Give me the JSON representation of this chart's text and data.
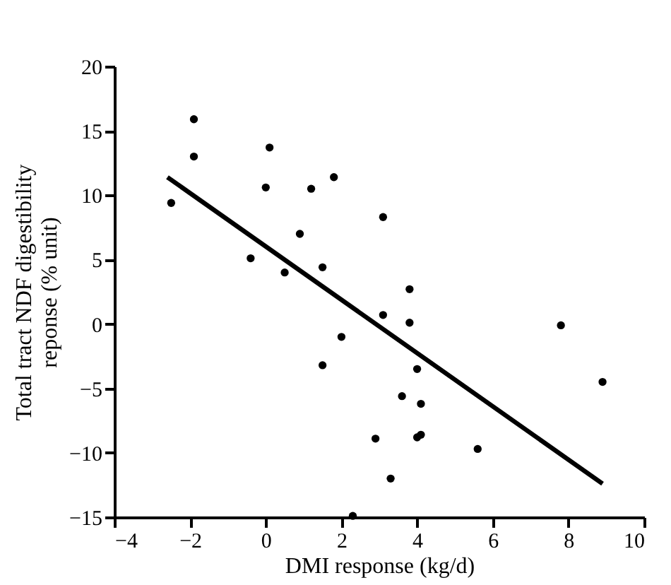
{
  "chart_data": {
    "type": "scatter",
    "xlabel": "DMI response (kg/d)",
    "ylabel": "Total tract NDF digestibility\nreponse (% unit)",
    "xlim": [
      -4,
      10
    ],
    "ylim": [
      -15,
      20
    ],
    "xticks": [
      -4,
      -2,
      0,
      2,
      4,
      6,
      8,
      10
    ],
    "yticks": [
      -15,
      -10,
      -5,
      0,
      5,
      10,
      15,
      20
    ],
    "grid": false,
    "marker": "circle",
    "series": [
      {
        "color": "#000000",
        "x": [
          -2.5,
          -1.9,
          -1.9,
          0.1,
          0,
          1.2,
          1.8,
          0.9,
          -0.4,
          0.5,
          1.5,
          2,
          1.5,
          2.9,
          2.3,
          3.1,
          3.8,
          3.1,
          3.8,
          4,
          3.6,
          4.1,
          4,
          4.1,
          3.3,
          5.6,
          7.8,
          8.9
        ],
        "values": [
          9.4,
          15.9,
          13,
          13.7,
          10.6,
          10.5,
          11.4,
          7,
          5.1,
          4,
          4.4,
          -1,
          -3.2,
          -8.9,
          -14.9,
          8.3,
          2.7,
          0.7,
          0.1,
          -3.5,
          -5.6,
          -6.2,
          -8.8,
          -8.6,
          -12,
          -9.7,
          -0.1,
          -4.5
        ]
      },
      {
        "type": "line",
        "color": "#000000",
        "marker": "none",
        "x": [
          -2.6,
          8.9
        ],
        "values": [
          11.4,
          -12.4
        ]
      }
    ]
  }
}
